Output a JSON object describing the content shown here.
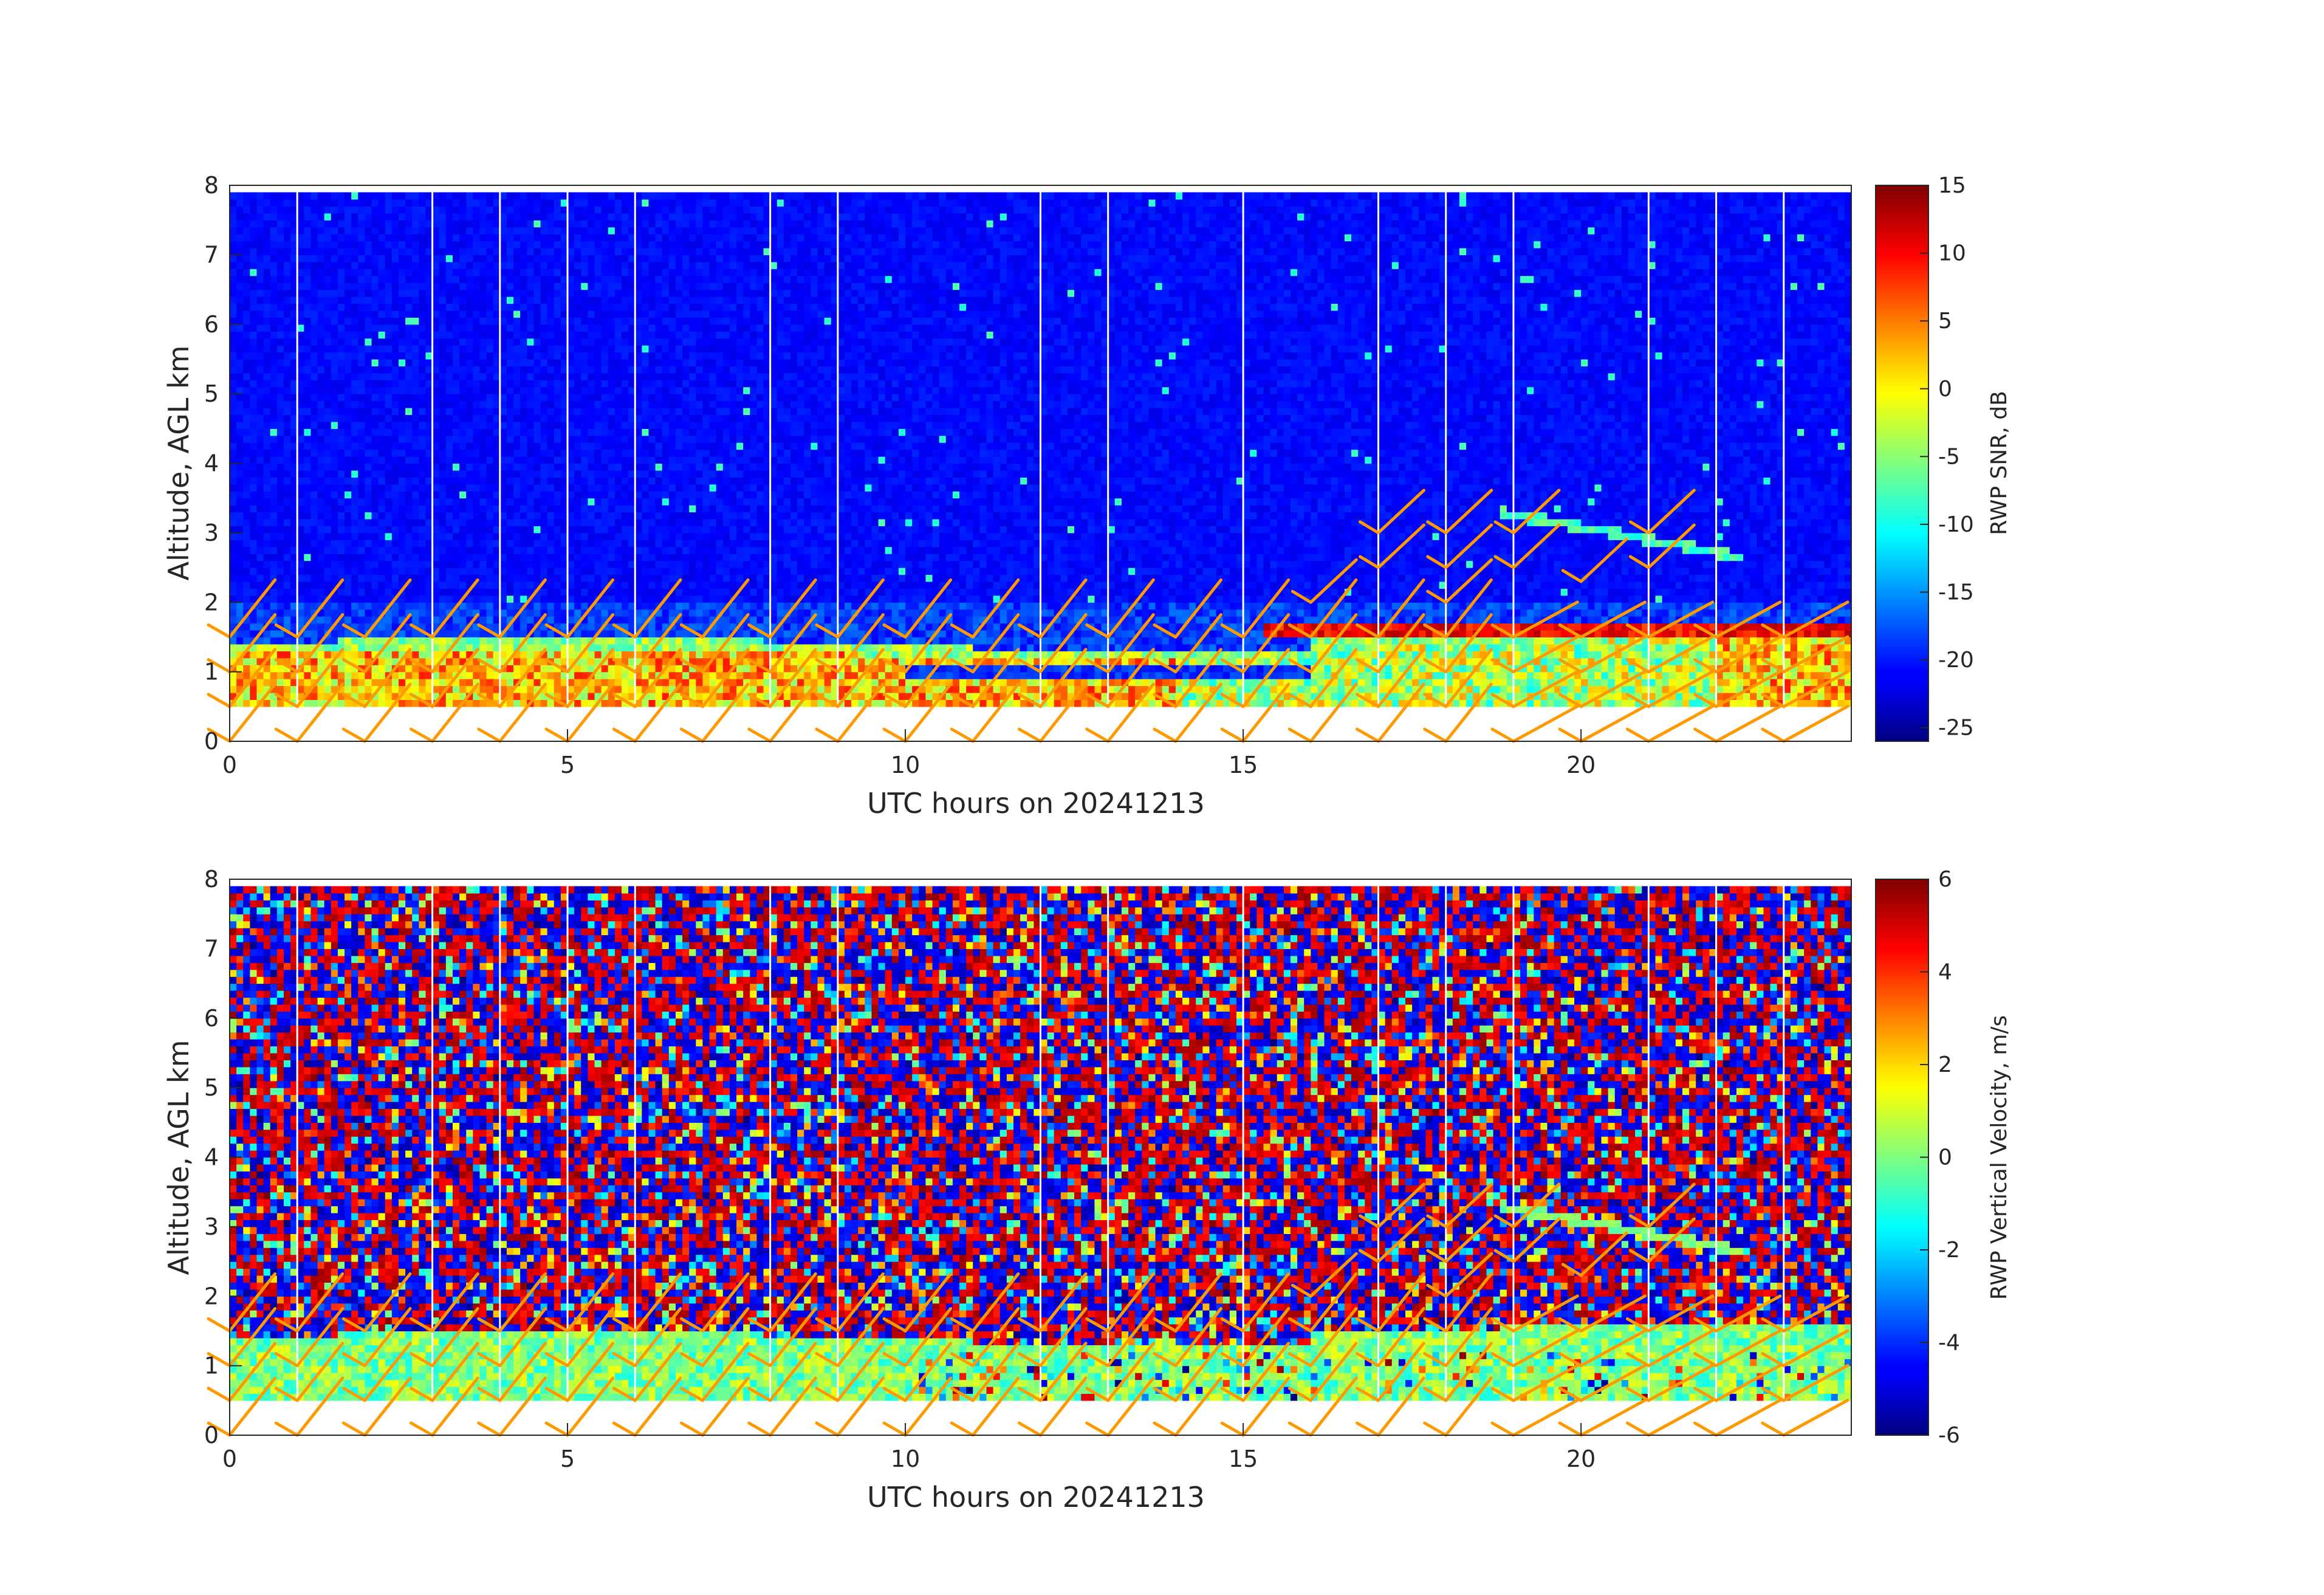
{
  "chart_data": [
    {
      "type": "heatmap",
      "name": "snr-panel",
      "xlabel": "UTC hours on 20241213",
      "ylabel": "Altitude, AGL km",
      "xlim": [
        0,
        24
      ],
      "ylim": [
        0,
        8
      ],
      "xticks": [
        "0",
        "5",
        "10",
        "15",
        "20"
      ],
      "yticks": [
        "0",
        "1",
        "2",
        "3",
        "4",
        "5",
        "6",
        "7",
        "8"
      ],
      "colorbar": {
        "label": "RWP SNR, dB",
        "colormap": "jet",
        "clim": [
          -26,
          15
        ],
        "ticks": [
          "15",
          "10",
          "5",
          "0",
          "-5",
          "-10",
          "-15",
          "-20",
          "-25"
        ]
      },
      "data_range_km": [
        0.5,
        7.9
      ],
      "overlay": "wind barbs (orange)",
      "grid": false
    },
    {
      "type": "heatmap",
      "name": "vertical-velocity-panel",
      "xlabel": "UTC hours on 20241213",
      "ylabel": "Altitude, AGL km",
      "xlim": [
        0,
        24
      ],
      "ylim": [
        0,
        8
      ],
      "xticks": [
        "0",
        "5",
        "10",
        "15",
        "20"
      ],
      "yticks": [
        "0",
        "1",
        "2",
        "3",
        "4",
        "5",
        "6",
        "7",
        "8"
      ],
      "colorbar": {
        "label": "RWP Vertical Velocity, m/s",
        "colormap": "jet",
        "clim": [
          -6,
          6
        ],
        "ticks": [
          "6",
          "4",
          "2",
          "0",
          "-2",
          "-4",
          "-6"
        ]
      },
      "data_range_km": [
        0.5,
        7.9
      ],
      "overlay": "wind barbs (orange)",
      "grid": false
    }
  ],
  "colors": {
    "barb": "#ff9900",
    "gap_line": "#ffffff",
    "axis": "#262626"
  },
  "gap_hours": [
    1,
    3,
    4,
    5,
    6,
    8,
    9,
    12,
    13,
    15,
    17,
    18,
    19,
    21,
    22,
    23
  ],
  "barb_hours": [
    0,
    1,
    2,
    3,
    4,
    5,
    6,
    7,
    8,
    9,
    10,
    11,
    12,
    13,
    14,
    15,
    16,
    17,
    18,
    19,
    20,
    21,
    22,
    23
  ]
}
